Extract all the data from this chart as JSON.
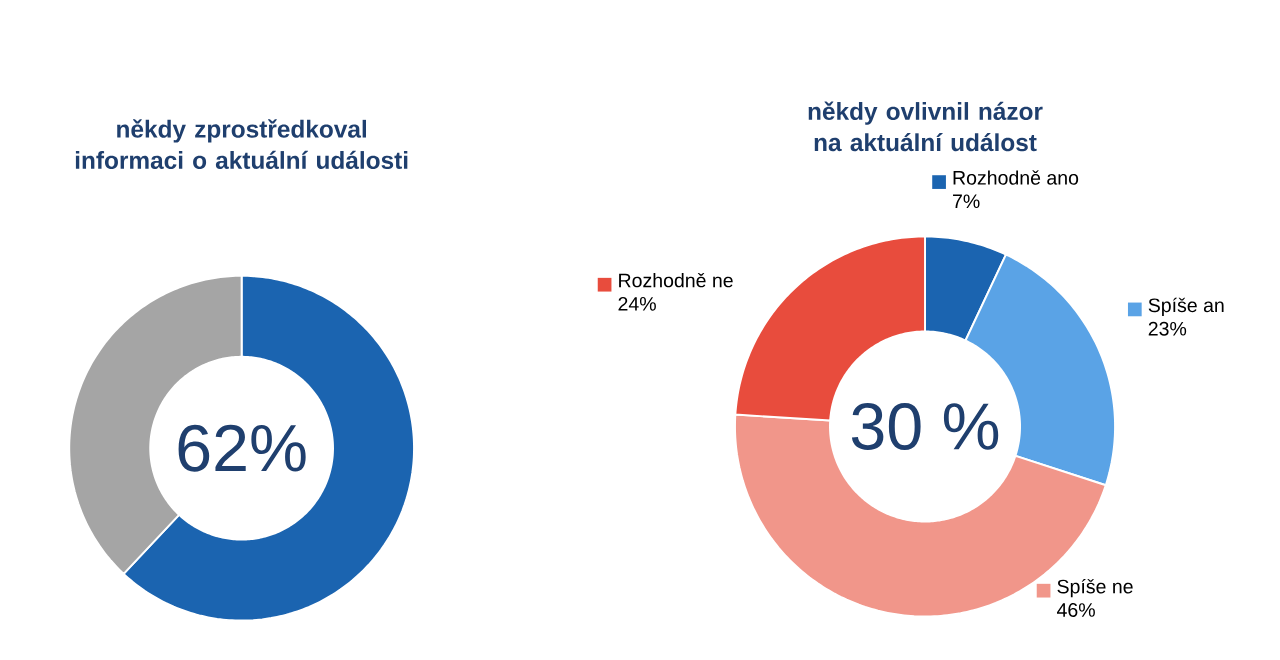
{
  "chart_data": [
    {
      "type": "donut",
      "title": "někdy zprostředkoval informaci o **aktuální události**",
      "categories": [
        null,
        null
      ],
      "values": [
        62,
        38
      ],
      "colors": [
        "#1b64b0",
        "#a5a5a5"
      ],
      "annotations": [
        "62%"
      ]
    },
    {
      "type": "donut",
      "title": "někdy ovlivnil názor na **aktuální událost**",
      "categories": [
        "Rozhodně ano",
        "Spíše an",
        "Spíše ne",
        "Rozhodně ne"
      ],
      "values": [
        7,
        23,
        46,
        24
      ],
      "value_labels": [
        "7%",
        "23%",
        "46%",
        "24%"
      ],
      "legend": "right",
      "colors": [
        "#1b64b0",
        "#5aa3e6",
        "#f1968a",
        "#e84c3d"
      ],
      "annotations": [
        "30 %"
      ]
    }
  ]
}
